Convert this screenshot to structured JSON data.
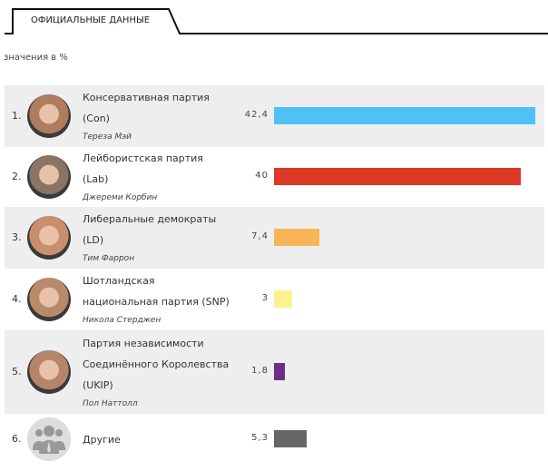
{
  "tab": {
    "label": "ОФИЦИАЛЬНЫЕ ДАННЫЕ"
  },
  "unit_label": "значения в %",
  "chart_data": {
    "type": "bar",
    "orientation": "horizontal",
    "xlim": [
      0,
      42.4
    ],
    "categories": [
      "Консервативная партия (Con)",
      "Лейбористская партия (Lab)",
      "Либеральные демократы (LD)",
      "Шотландская национальная партия (SNP)",
      "Партия независимости Соединённого Королевства (UKIP)",
      "Другие"
    ],
    "values": [
      42.4,
      40,
      7.4,
      3,
      1.8,
      5.3
    ],
    "colors": [
      "#4fc1f7",
      "#dd3a25",
      "#f8b557",
      "#fdf190",
      "#6e2d8a",
      "#666666"
    ]
  },
  "rows": [
    {
      "rank": "1.",
      "lines": [
        "Консервативная партия",
        "(Con)"
      ],
      "leader": "Тереза Мэй",
      "value_label": "42,4",
      "avatar": "#b07c5e"
    },
    {
      "rank": "2.",
      "lines": [
        "Лейбористская партия",
        "(Lab)"
      ],
      "leader": "Джереми Корбин",
      "value_label": "40",
      "avatar": "#8a7565"
    },
    {
      "rank": "3.",
      "lines": [
        "Либеральные демократы",
        "(LD)"
      ],
      "leader": "Тим Фаррон",
      "value_label": "7,4",
      "avatar": "#c98f6c"
    },
    {
      "rank": "4.",
      "lines": [
        "Шотландская",
        "национальная партия (SNP)"
      ],
      "leader": "Никола Стерджен",
      "value_label": "3",
      "avatar": "#b88a6a"
    },
    {
      "rank": "5.",
      "lines": [
        "Партия независимости",
        "Соединённого Королевства",
        "(UKIP)"
      ],
      "leader": "Пол Наттолл",
      "value_label": "1,8",
      "avatar": "#b5856a"
    },
    {
      "rank": "6.",
      "lines": [
        "Другие"
      ],
      "leader": "",
      "value_label": "5,3",
      "avatar": "#dddddd"
    }
  ]
}
